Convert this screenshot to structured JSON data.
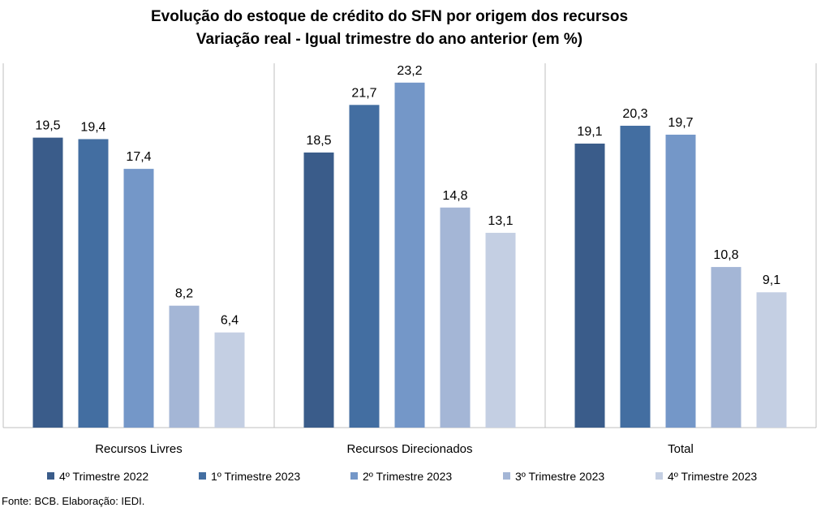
{
  "title": "Evolução do estoque de crédito do SFN por origem dos recursos",
  "subtitle": "Variação real - Igual trimestre do ano anterior (em %)",
  "source": "Fonte: BCB. Elaboração: IEDI.",
  "chart_data": {
    "type": "bar",
    "title": "Evolução do estoque de crédito do SFN por origem dos recursos",
    "subtitle": "Variação real - Igual trimestre do ano anterior (em %)",
    "categories": [
      "Recursos Livres",
      "Recursos Direcionados",
      "Total"
    ],
    "series": [
      {
        "name": "4º Trimestre 2022",
        "values": [
          19.5,
          18.5,
          19.1
        ],
        "color": "#3a5c8a"
      },
      {
        "name": "1º Trimestre 2023",
        "values": [
          19.4,
          21.7,
          20.3
        ],
        "color": "#436ea1"
      },
      {
        "name": "2º Trimestre 2023",
        "values": [
          17.4,
          23.2,
          19.7
        ],
        "color": "#7497c8"
      },
      {
        "name": "3º Trimestre 2023",
        "values": [
          8.2,
          14.8,
          10.8
        ],
        "color": "#a4b6d6"
      },
      {
        "name": "4º Trimestre 2023",
        "values": [
          6.4,
          13.1,
          9.1
        ],
        "color": "#c4cfe3"
      }
    ],
    "ylim": [
      0,
      24.5
    ],
    "decimal_separator": ",",
    "legend_position": "bottom",
    "grid": false
  }
}
